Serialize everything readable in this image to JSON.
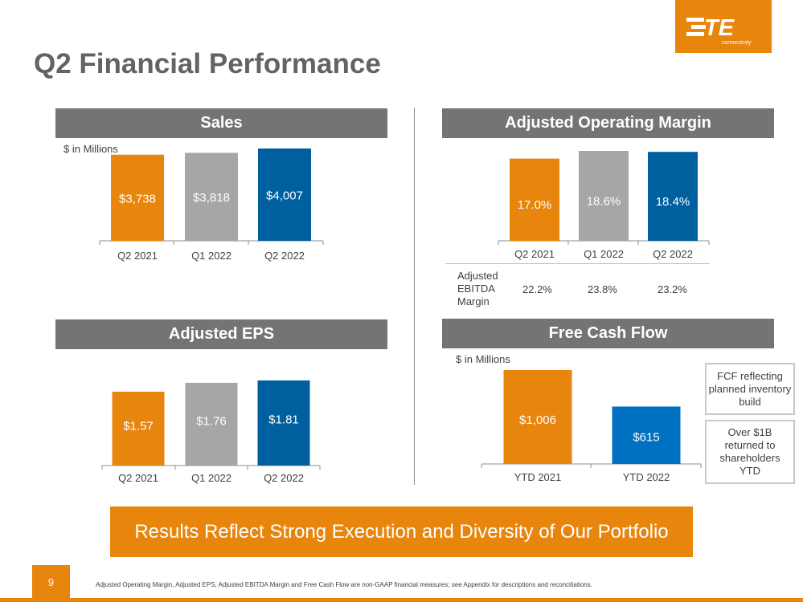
{
  "title": "Q2 Financial Performance",
  "logo": {
    "text": "TE",
    "subtext": "connectivity",
    "color": "#E8850C"
  },
  "colors": {
    "orange": "#E8850C",
    "gray": "#A6A6A6",
    "blue": "#005F9E",
    "header": "#747474"
  },
  "sales": {
    "header": "Sales",
    "unit": "$ in Millions"
  },
  "aom": {
    "header": "Adjusted Operating Margin"
  },
  "eps": {
    "header": "Adjusted EPS"
  },
  "fcf": {
    "header": "Free Cash Flow",
    "unit": "$ in Millions"
  },
  "ebitda": {
    "label_lines": [
      "Adjusted",
      "EBITDA",
      "Margin"
    ],
    "values": [
      "22.2%",
      "23.8%",
      "23.2%"
    ]
  },
  "notes": {
    "note1": "FCF reflecting planned inventory build",
    "note2": "Over $1B returned to shareholders YTD"
  },
  "banner": "Results Reflect Strong Execution and Diversity of Our Portfolio",
  "page_number": "9",
  "footnote": "Adjusted Operating Margin, Adjusted EPS, Adjusted EBITDA Margin and Free Cash Flow are non-GAAP financial measures; see Appendix for descriptions and reconciliations.",
  "chart_data": [
    {
      "id": "sales",
      "type": "bar",
      "categories": [
        "Q2 2021",
        "Q1 2022",
        "Q2 2022"
      ],
      "values": [
        3738,
        3818,
        4007
      ],
      "labels": [
        "$3,738",
        "$3,818",
        "$4,007"
      ],
      "colors": [
        "#E8850C",
        "#A6A6A6",
        "#005F9E"
      ],
      "ylim": [
        0,
        4007
      ]
    },
    {
      "id": "aom",
      "type": "bar",
      "categories": [
        "Q2 2021",
        "Q1 2022",
        "Q2 2022"
      ],
      "values": [
        17.0,
        18.6,
        18.4
      ],
      "labels": [
        "17.0%",
        "18.6%",
        "18.4%"
      ],
      "colors": [
        "#E8850C",
        "#A6A6A6",
        "#005F9E"
      ],
      "ylim": [
        0,
        18.6
      ]
    },
    {
      "id": "eps",
      "type": "bar",
      "categories": [
        "Q2 2021",
        "Q1 2022",
        "Q2 2022"
      ],
      "values": [
        1.57,
        1.76,
        1.81
      ],
      "labels": [
        "$1.57",
        "$1.76",
        "$1.81"
      ],
      "colors": [
        "#E8850C",
        "#A6A6A6",
        "#005F9E"
      ],
      "ylim": [
        0,
        1.81
      ]
    },
    {
      "id": "fcf",
      "type": "bar",
      "categories": [
        "YTD 2021",
        "YTD 2022"
      ],
      "values": [
        1006,
        615
      ],
      "labels": [
        "$1,006",
        "$615"
      ],
      "colors": [
        "#E8850C",
        "#0070C0"
      ],
      "ylim": [
        0,
        1006
      ]
    }
  ]
}
